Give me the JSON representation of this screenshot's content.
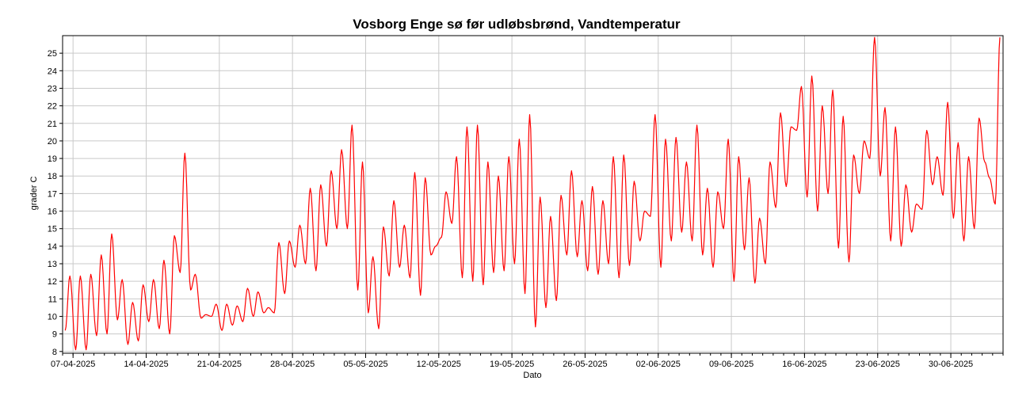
{
  "chart_data": {
    "type": "line",
    "title": "Vosborg Enge sø før udløbsbrønd, Vandtemperatur",
    "xlabel": "Dato",
    "ylabel": "grader C",
    "x_tick_labels": [
      "07-04-2025",
      "14-04-2025",
      "21-04-2025",
      "28-04-2025",
      "05-05-2025",
      "12-05-2025",
      "19-05-2025",
      "26-05-2025",
      "02-06-2025",
      "09-06-2025",
      "16-06-2025",
      "23-06-2025",
      "30-06-2025"
    ],
    "y_tick_labels": [
      "8",
      "9",
      "10",
      "11",
      "12",
      "13",
      "14",
      "15",
      "16",
      "17",
      "18",
      "19",
      "20",
      "21",
      "22",
      "23",
      "24",
      "25"
    ],
    "xlim": [
      "2025-04-06",
      "2025-07-05"
    ],
    "ylim": [
      7.9,
      26.0
    ],
    "grid": true,
    "legend": "none",
    "series": [
      {
        "color": "#ff0000",
        "x": [
          "2025-04-06",
          "2025-04-07",
          "2025-04-08",
          "2025-04-09",
          "2025-04-10",
          "2025-04-11",
          "2025-04-12",
          "2025-04-13",
          "2025-04-14",
          "2025-04-15",
          "2025-04-16",
          "2025-04-17",
          "2025-04-18",
          "2025-04-19",
          "2025-04-20",
          "2025-04-21",
          "2025-04-22",
          "2025-04-23",
          "2025-04-24",
          "2025-04-25",
          "2025-04-26",
          "2025-04-27",
          "2025-04-28",
          "2025-04-29",
          "2025-04-30",
          "2025-05-01",
          "2025-05-02",
          "2025-05-03",
          "2025-05-04",
          "2025-05-05",
          "2025-05-06",
          "2025-05-07",
          "2025-05-08",
          "2025-05-09",
          "2025-05-10",
          "2025-05-11",
          "2025-05-12",
          "2025-05-13",
          "2025-05-14",
          "2025-05-15",
          "2025-05-16",
          "2025-05-17",
          "2025-05-18",
          "2025-05-19",
          "2025-05-20",
          "2025-05-21",
          "2025-05-22",
          "2025-05-23",
          "2025-05-24",
          "2025-05-25",
          "2025-05-26",
          "2025-05-27",
          "2025-05-28",
          "2025-05-29",
          "2025-05-30",
          "2025-05-31",
          "2025-06-01",
          "2025-06-02",
          "2025-06-03",
          "2025-06-04",
          "2025-06-05",
          "2025-06-06",
          "2025-06-07",
          "2025-06-08",
          "2025-06-09",
          "2025-06-10",
          "2025-06-11",
          "2025-06-12",
          "2025-06-13",
          "2025-06-14",
          "2025-06-15",
          "2025-06-16",
          "2025-06-17",
          "2025-06-18",
          "2025-06-19",
          "2025-06-20",
          "2025-06-21",
          "2025-06-22",
          "2025-06-23",
          "2025-06-24",
          "2025-06-25",
          "2025-06-26",
          "2025-06-27",
          "2025-06-28",
          "2025-06-29",
          "2025-06-30",
          "2025-07-01",
          "2025-07-02",
          "2025-07-03",
          "2025-07-04"
        ],
        "mins": [
          9.2,
          8.1,
          8.1,
          8.9,
          9.0,
          9.8,
          8.4,
          8.6,
          9.7,
          9.3,
          9.0,
          12.5,
          11.5,
          9.9,
          10.0,
          9.2,
          9.5,
          9.7,
          10.0,
          10.2,
          10.2,
          11.3,
          12.8,
          13.0,
          12.6,
          14.0,
          15.0,
          15.0,
          11.5,
          10.2,
          9.3,
          12.3,
          12.8,
          12.2,
          11.2,
          13.5,
          14.5,
          15.3,
          12.2,
          12.0,
          11.8,
          12.5,
          12.6,
          13.0,
          11.3,
          9.4,
          10.5,
          10.9,
          13.5,
          13.4,
          12.6,
          12.4,
          13.0,
          12.2,
          12.9,
          14.3,
          15.7,
          12.8,
          14.3,
          14.8,
          14.3,
          13.5,
          12.8,
          15.0,
          12.0,
          13.8,
          11.9,
          13.0,
          16.2,
          17.4,
          20.6,
          16.8,
          16.0,
          17.0,
          13.9,
          13.1,
          17.0,
          19.0,
          18.0,
          14.3,
          14.0,
          14.8,
          16.1,
          17.5,
          16.9,
          15.6,
          14.3,
          15.0,
          18.8,
          16.4
        ],
        "maxs": [
          12.3,
          12.3,
          12.4,
          13.5,
          14.7,
          12.1,
          10.8,
          11.8,
          12.1,
          13.2,
          14.6,
          19.3,
          12.4,
          10.1,
          10.7,
          10.7,
          10.6,
          11.6,
          11.4,
          10.5,
          14.2,
          14.3,
          15.2,
          17.3,
          17.5,
          18.3,
          19.5,
          20.9,
          18.8,
          13.4,
          15.1,
          16.6,
          15.2,
          18.2,
          17.9,
          14.0,
          17.1,
          19.1,
          20.8,
          20.9,
          18.8,
          18.0,
          19.1,
          20.1,
          21.5,
          16.8,
          15.7,
          16.9,
          18.3,
          16.6,
          17.4,
          16.6,
          19.1,
          19.2,
          17.7,
          16.0,
          21.5,
          20.1,
          20.2,
          18.8,
          20.9,
          17.3,
          17.1,
          20.1,
          19.1,
          17.9,
          15.6,
          18.8,
          21.6,
          20.8,
          23.1,
          23.7,
          22.0,
          22.9,
          21.4,
          19.2,
          20.0,
          25.9,
          21.9,
          20.8,
          17.5,
          16.4,
          20.6,
          19.1,
          22.2,
          19.9,
          19.1,
          21.3,
          17.9,
          25.9
        ]
      }
    ]
  }
}
